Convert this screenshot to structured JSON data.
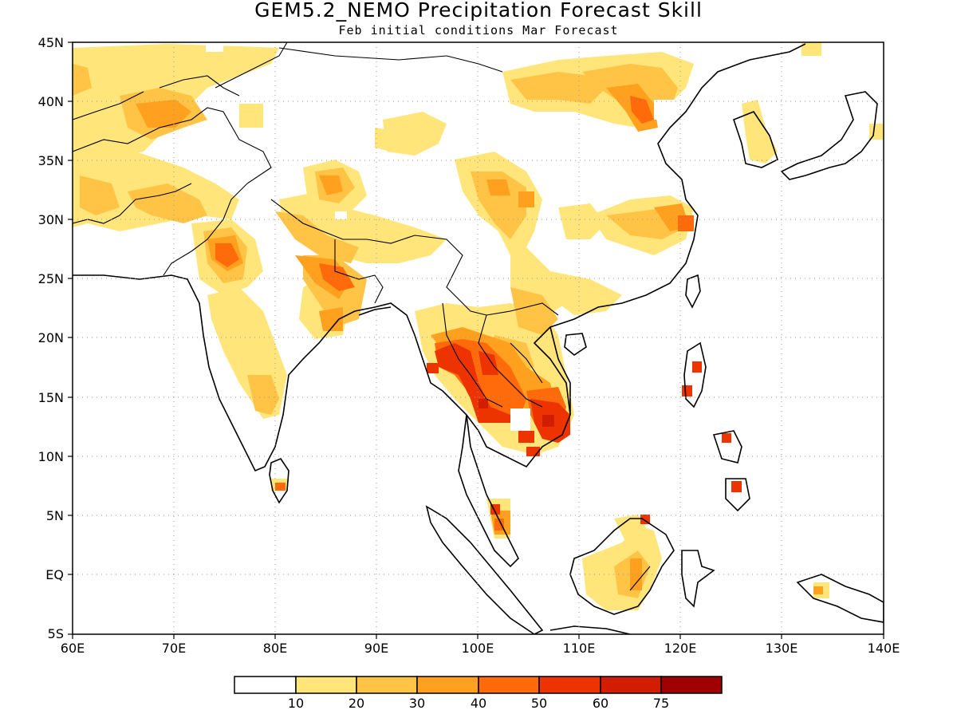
{
  "title": "GEM5.2_NEMO Precipitation Forecast Skill",
  "subtitle": "Feb initial conditions  Mar Forecast",
  "map": {
    "lon_range": [
      60,
      140
    ],
    "lat_range": [
      -5,
      45
    ],
    "grid": "dotted",
    "y_ticks": [
      "45N",
      "40N",
      "35N",
      "30N",
      "25N",
      "20N",
      "15N",
      "10N",
      "5N",
      "EQ",
      "5S"
    ],
    "x_ticks": [
      "60E",
      "70E",
      "80E",
      "90E",
      "100E",
      "110E",
      "120E",
      "130E",
      "140E"
    ]
  },
  "colorbar": {
    "labels": [
      "10",
      "20",
      "30",
      "40",
      "50",
      "60",
      "75"
    ],
    "colors": [
      "#ffffff",
      "#ffe57a",
      "#ffc445",
      "#ffa01e",
      "#ff6a0a",
      "#ec3300",
      "#d21d00",
      "#a00000"
    ]
  }
}
